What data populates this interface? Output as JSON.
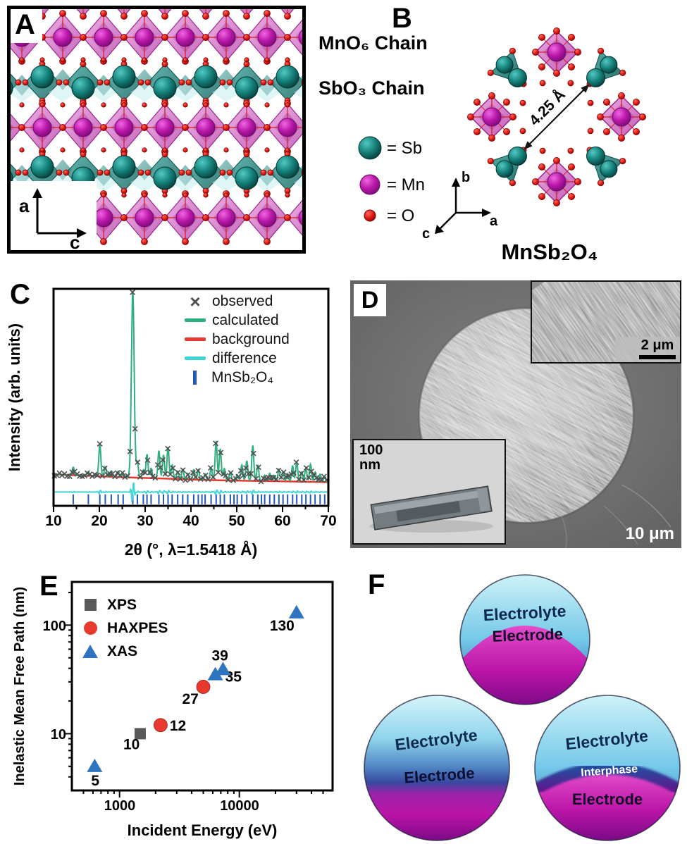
{
  "panelA": {
    "label": "A",
    "chain_label_1": "MnO₆ Chain",
    "chain_label_2": "SbO₃ Chain",
    "axis_vertical": "a",
    "axis_horizontal": "c"
  },
  "panelB": {
    "label": "B",
    "distance": "4.25 Å",
    "legend": [
      {
        "icon": "sb-sphere",
        "text": "= Sb"
      },
      {
        "icon": "mn-sphere",
        "text": "= Mn"
      },
      {
        "icon": "o-sphere",
        "text": "= O"
      }
    ],
    "axis_b": "b",
    "axis_a": "a",
    "axis_c": "c",
    "formula": "MnSb₂O₄"
  },
  "panelC": {
    "label": "C"
  },
  "panelD": {
    "label": "D",
    "inset_top_scale": "2 μm",
    "inset_bottom_scale": "100 nm",
    "main_scale": "10 μm"
  },
  "panelE": {
    "label": "E"
  },
  "panelF": {
    "label": "F",
    "circles": [
      {
        "top": "Electrolyte",
        "bottom": "Electrode"
      },
      {
        "top": "Electrolyte",
        "bottom": "Electrode"
      },
      {
        "top": "Electrolyte",
        "mid": "Interphase",
        "bottom": "Electrode"
      }
    ]
  },
  "colors": {
    "mn_atom": "#b5189f",
    "sb_atom": "#137a74",
    "o_atom": "#e21212",
    "mn_octahedron": "#cf6cc4",
    "sb_polyhedron": "#1d8480",
    "electrolyte_blue": "#2a5fa8",
    "electrode_magenta": "#bc15a8"
  },
  "chart_data": [
    {
      "id": "xrd_rietveld",
      "type": "line",
      "xlabel": "2θ (°, λ=1.5418 Å)",
      "ylabel": "Intensity (arb. units)",
      "xlim": [
        10,
        70
      ],
      "xticks": [
        10,
        20,
        30,
        40,
        50,
        60,
        70
      ],
      "grid": false,
      "legend_position": "top-right",
      "legend": [
        {
          "label": "observed",
          "marker": "x",
          "color": "#4f4f4f"
        },
        {
          "label": "calculated",
          "marker": "line",
          "color": "#2fae7e"
        },
        {
          "label": "background",
          "marker": "line",
          "color": "#e8392f"
        },
        {
          "label": "difference",
          "marker": "line",
          "color": "#3fd6d6"
        },
        {
          "label": "MnSb₂O₄",
          "marker": "tick",
          "color": "#2457bd"
        }
      ],
      "background_points": [
        [
          10,
          12
        ],
        [
          25,
          10.5
        ],
        [
          45,
          9
        ],
        [
          70,
          8
        ]
      ],
      "difference_level": 3,
      "peaks": [
        [
          14.3,
          4
        ],
        [
          17.6,
          2
        ],
        [
          20.1,
          16
        ],
        [
          21.3,
          5
        ],
        [
          22.6,
          3
        ],
        [
          24.1,
          3
        ],
        [
          25.2,
          2
        ],
        [
          27.3,
          95
        ],
        [
          28.3,
          8
        ],
        [
          29.6,
          4
        ],
        [
          30.4,
          12
        ],
        [
          31.3,
          5
        ],
        [
          33,
          14
        ],
        [
          34,
          12
        ],
        [
          35,
          16
        ],
        [
          35.9,
          7
        ],
        [
          37.1,
          4
        ],
        [
          38.2,
          5
        ],
        [
          39.3,
          3
        ],
        [
          40.6,
          5
        ],
        [
          41.6,
          5
        ],
        [
          43.1,
          3
        ],
        [
          44.4,
          6
        ],
        [
          45.5,
          20
        ],
        [
          46.4,
          16
        ],
        [
          47.3,
          6
        ],
        [
          48.6,
          4
        ],
        [
          50.1,
          3
        ],
        [
          51.1,
          8
        ],
        [
          52.2,
          10
        ],
        [
          53.5,
          18
        ],
        [
          54.6,
          8
        ],
        [
          56.1,
          3
        ],
        [
          57.2,
          4
        ],
        [
          58.2,
          3
        ],
        [
          59.2,
          6
        ],
        [
          60.1,
          5
        ],
        [
          61.1,
          4
        ],
        [
          62.2,
          8
        ],
        [
          63.1,
          10
        ],
        [
          64.2,
          5
        ],
        [
          65.1,
          7
        ],
        [
          66.1,
          9
        ],
        [
          67.1,
          5
        ],
        [
          68.2,
          4
        ],
        [
          69.2,
          3
        ]
      ],
      "bragg_ticks": [
        14.3,
        17.6,
        20.1,
        21.3,
        22.6,
        24.1,
        25.2,
        27.3,
        28.3,
        29.6,
        30.4,
        31.3,
        33,
        34,
        35,
        35.9,
        37.1,
        38.2,
        39.3,
        40.6,
        41.6,
        42.4,
        43.1,
        44.4,
        45.5,
        46.4,
        47.3,
        48.6,
        49.4,
        50.1,
        51.1,
        52.2,
        53.5,
        54.6,
        55.4,
        56.1,
        57.2,
        58.2,
        59.2,
        60.1,
        61.1,
        62.2,
        63.1,
        64.2,
        65.1,
        66.1,
        67.1,
        68.2,
        69.2
      ]
    },
    {
      "id": "imfp_vs_energy",
      "type": "scatter",
      "xlabel": "Incident Energy (eV)",
      "ylabel": "Inelastic Mean Free Path (nm)",
      "xscale": "log",
      "yscale": "log",
      "xlim": [
        400,
        60000
      ],
      "ylim": [
        3,
        250
      ],
      "xticks": [
        1000,
        10000
      ],
      "yticks": [
        10,
        100
      ],
      "legend_position": "top-left",
      "series": [
        {
          "name": "XPS",
          "marker": "square",
          "color": "#595959",
          "points": [
            {
              "x": 1487,
              "y": 10,
              "label": "10",
              "label_dx": -24,
              "label_dy": 22
            }
          ]
        },
        {
          "name": "HAXPES",
          "marker": "circle",
          "color": "#e8392f",
          "points": [
            {
              "x": 2200,
              "y": 12,
              "label": "12",
              "label_dx": 13,
              "label_dy": 8
            },
            {
              "x": 5000,
              "y": 27,
              "label": "27",
              "label_dx": -30,
              "label_dy": 24
            }
          ]
        },
        {
          "name": "XAS",
          "marker": "triangle",
          "color": "#2e74c0",
          "points": [
            {
              "x": 620,
              "y": 5,
              "label": "5",
              "label_dx": -5,
              "label_dy": 27
            },
            {
              "x": 6300,
              "y": 35,
              "label": "35",
              "label_dx": 14,
              "label_dy": 10
            },
            {
              "x": 7300,
              "y": 39,
              "label": "39",
              "label_dx": -16,
              "label_dy": -13
            },
            {
              "x": 30000,
              "y": 130,
              "label": "130",
              "label_dx": -38,
              "label_dy": 25
            }
          ]
        }
      ]
    }
  ]
}
